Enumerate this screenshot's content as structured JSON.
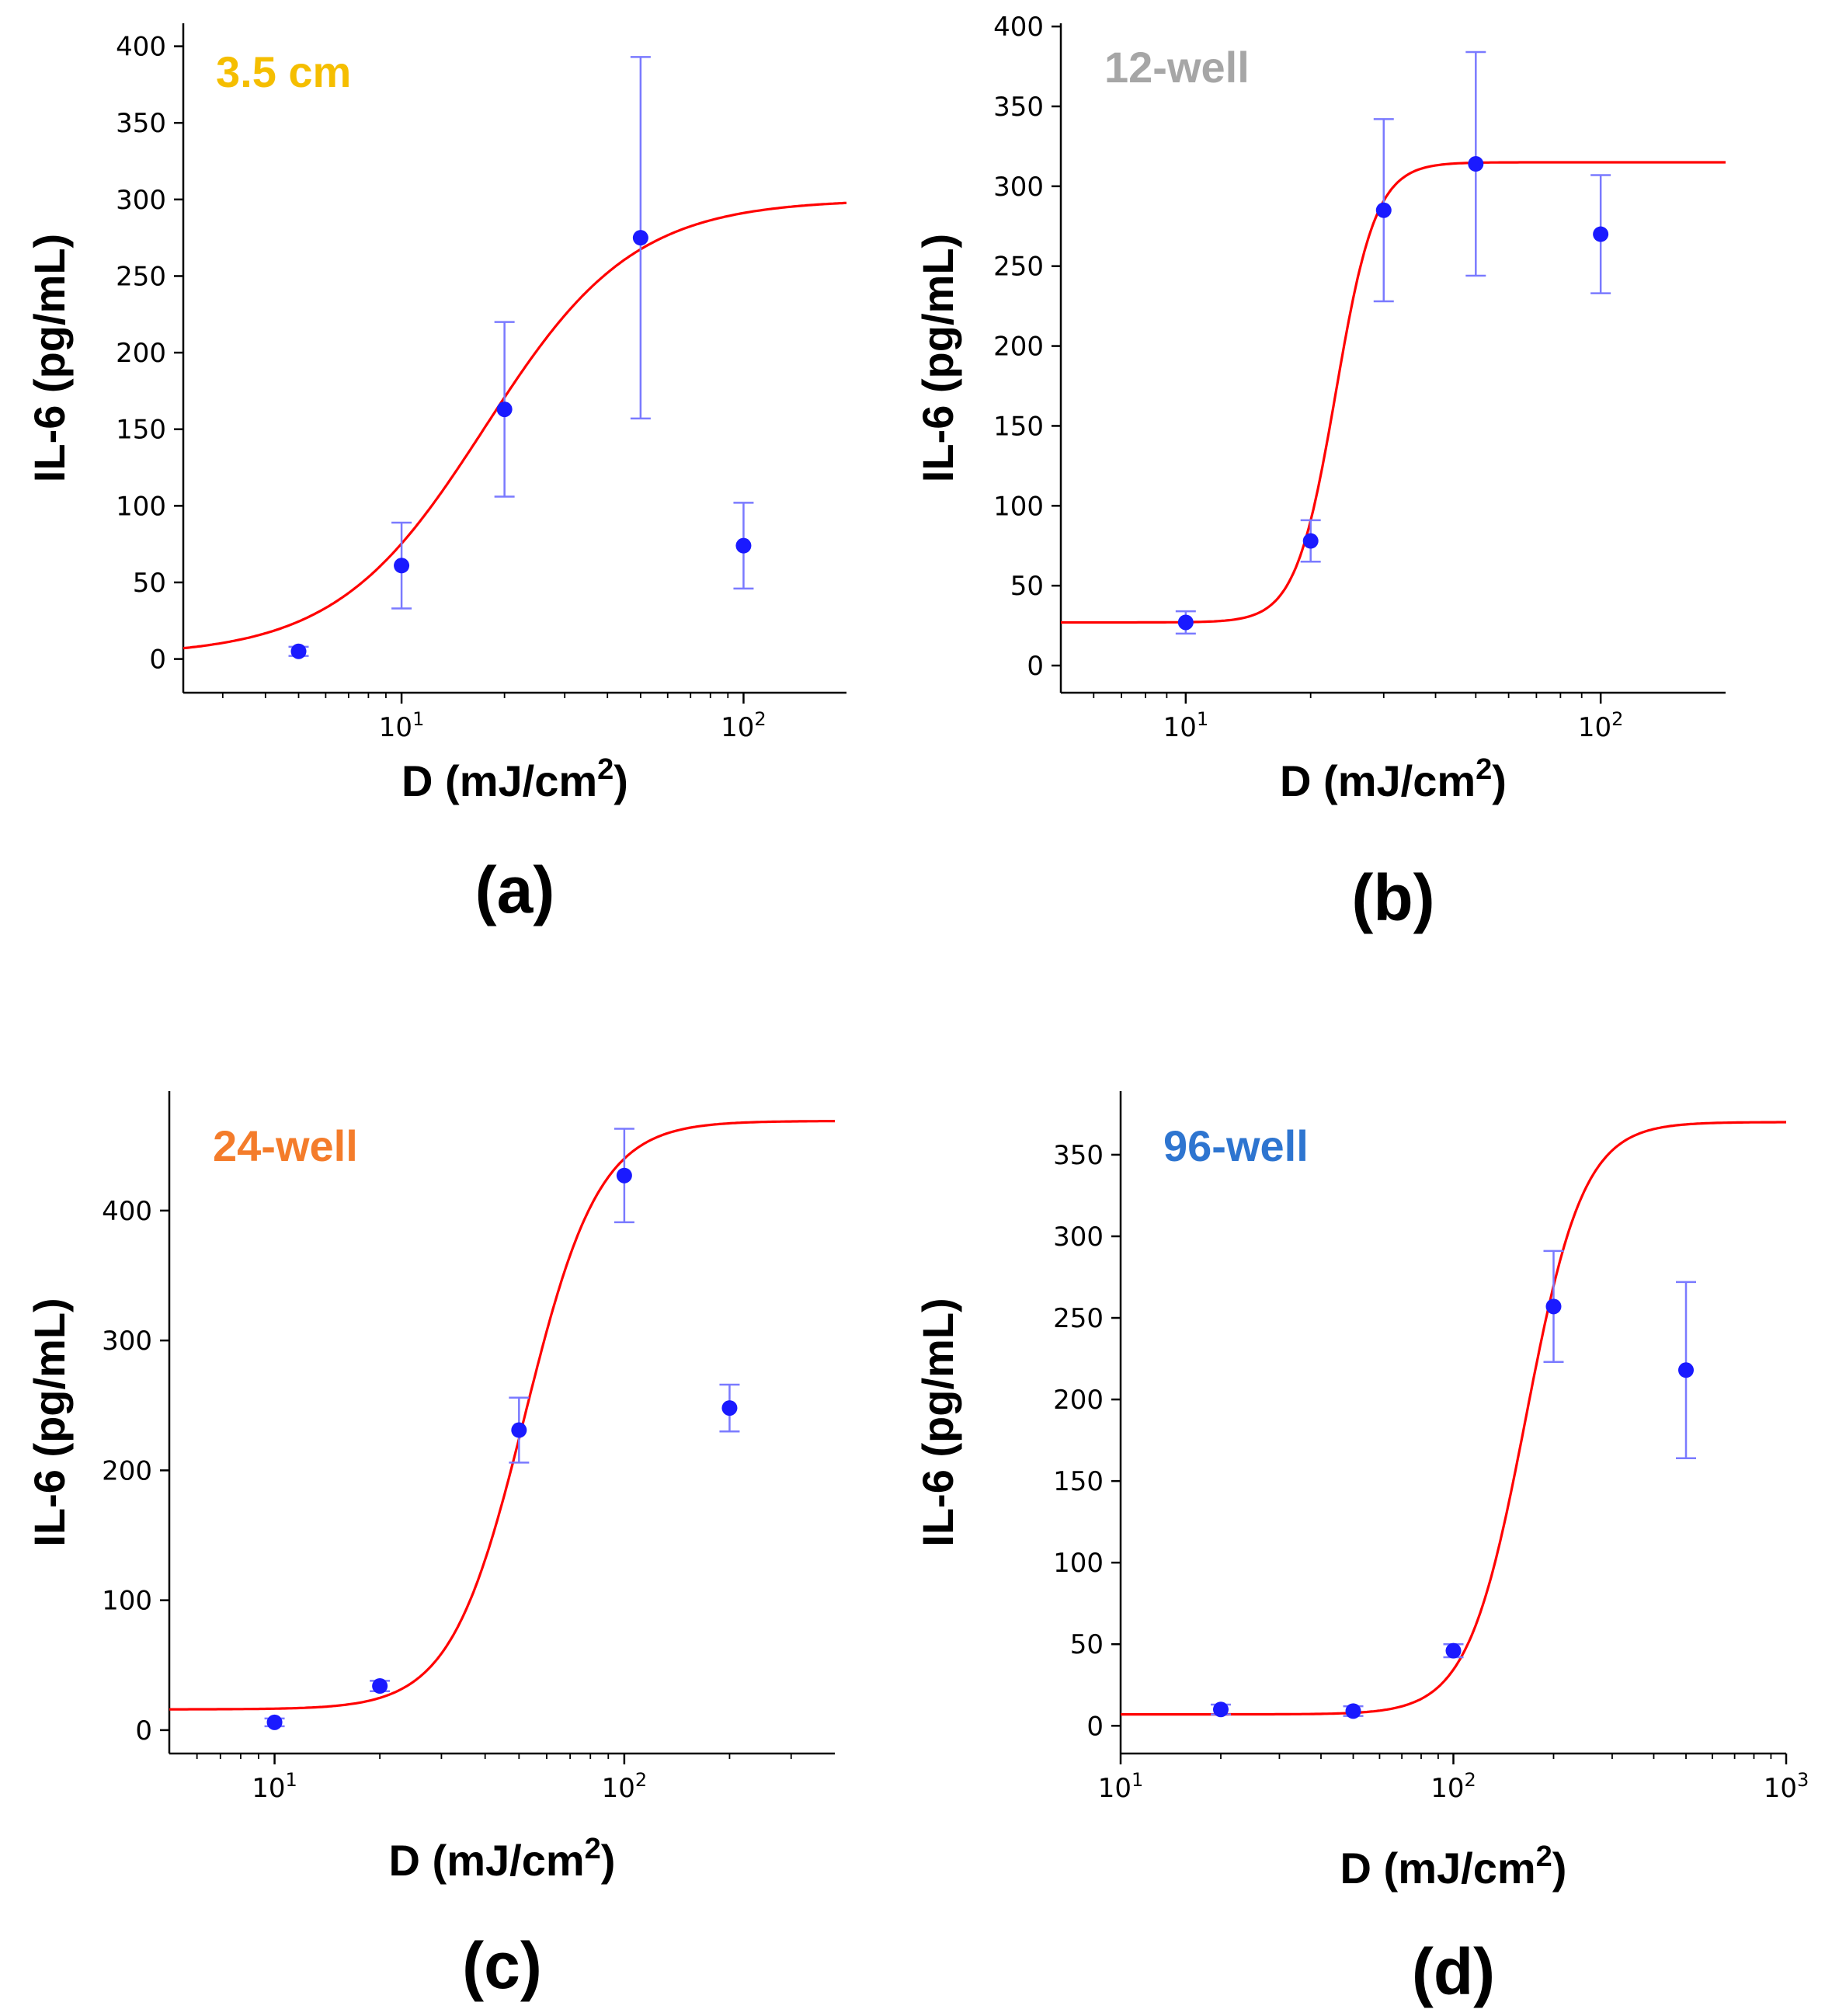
{
  "chart_data": [
    {
      "id": "a",
      "type": "scatter",
      "tag": "(a)",
      "title": "3.5 cm",
      "title_color": "#F5BE00",
      "xlabel": "D (mJ/cm",
      "xlabel_sup": "2",
      "xlabel_end": ")",
      "ylabel": "IL-6 (pg/mL)",
      "xscale": "log",
      "xlim": [
        2.3,
        200
      ],
      "ylim": [
        -22,
        415
      ],
      "yticks": [
        0,
        50,
        100,
        150,
        200,
        250,
        300,
        350,
        400
      ],
      "xticks": [
        {
          "value": 10,
          "base": "10",
          "exp": "1"
        },
        {
          "value": 100,
          "base": "10",
          "exp": "2"
        }
      ],
      "points": [
        {
          "x": 5,
          "y": 5,
          "err": 3
        },
        {
          "x": 10,
          "y": 61,
          "err": 28
        },
        {
          "x": 20,
          "y": 163,
          "err": 57
        },
        {
          "x": 50,
          "y": 275,
          "err": 118
        },
        {
          "x": 100,
          "y": 74,
          "err": 28
        }
      ],
      "fit": {
        "bottom": 2,
        "top": 300,
        "ec50": 17.5,
        "hill": 2.0
      },
      "marker_color": "#1a1aff",
      "errorbar_color": "#7a7aff",
      "fit_color": "#ff0000"
    },
    {
      "id": "b",
      "type": "scatter",
      "tag": "(b)",
      "title": "12-well",
      "title_color": "#A6A6A6",
      "xlabel": "D (mJ/cm",
      "xlabel_sup": "2",
      "xlabel_end": ")",
      "ylabel": "IL-6 (pg/mL)",
      "xscale": "log",
      "xlim": [
        5,
        200
      ],
      "ylim": [
        -17,
        402
      ],
      "yticks": [
        0,
        50,
        100,
        150,
        200,
        250,
        300,
        350,
        400
      ],
      "xticks": [
        {
          "value": 10,
          "base": "10",
          "exp": "1"
        },
        {
          "value": 100,
          "base": "10",
          "exp": "2"
        }
      ],
      "points": [
        {
          "x": 10,
          "y": 27,
          "err": 7
        },
        {
          "x": 20,
          "y": 78,
          "err": 13
        },
        {
          "x": 30,
          "y": 285,
          "err": 57
        },
        {
          "x": 50,
          "y": 314,
          "err": 70
        },
        {
          "x": 100,
          "y": 270,
          "err": 37
        }
      ],
      "fit": {
        "bottom": 27,
        "top": 315,
        "ec50": 23,
        "hill": 9
      },
      "marker_color": "#1a1aff",
      "errorbar_color": "#7a7aff",
      "fit_color": "#ff0000"
    },
    {
      "id": "c",
      "type": "scatter",
      "tag": "(c)",
      "title": "24-well",
      "title_color": "#F47C2B",
      "xlabel": "D (mJ/cm",
      "xlabel_sup": "2",
      "xlabel_end": ")",
      "ylabel": "IL-6 (pg/mL)",
      "xscale": "log",
      "xlim": [
        5,
        400
      ],
      "ylim": [
        -18,
        492
      ],
      "yticks": [
        0,
        100,
        200,
        300,
        400
      ],
      "xticks": [
        {
          "value": 10,
          "base": "10",
          "exp": "1"
        },
        {
          "value": 100,
          "base": "10",
          "exp": "2"
        }
      ],
      "points": [
        {
          "x": 10,
          "y": 6,
          "err": 3
        },
        {
          "x": 20,
          "y": 34,
          "err": 4
        },
        {
          "x": 50,
          "y": 231,
          "err": 25
        },
        {
          "x": 100,
          "y": 427,
          "err": 36
        },
        {
          "x": 200,
          "y": 248,
          "err": 18
        }
      ],
      "fit": {
        "bottom": 16,
        "top": 469,
        "ec50": 52,
        "hill": 4.1
      },
      "marker_color": "#1a1aff",
      "errorbar_color": "#7a7aff",
      "fit_color": "#ff0000"
    },
    {
      "id": "d",
      "type": "scatter",
      "tag": "(d)",
      "title": "96-well",
      "title_color": "#2E75D0",
      "xlabel": "D (mJ/cm",
      "xlabel_sup": "2",
      "xlabel_end": ")",
      "ylabel": "IL-6 (pg/mL)",
      "xscale": "log",
      "xlim": [
        10,
        1000
      ],
      "ylim": [
        -17,
        389
      ],
      "yticks": [
        0,
        50,
        100,
        150,
        200,
        250,
        300,
        350
      ],
      "xticks": [
        {
          "value": 10,
          "base": "10",
          "exp": "1"
        },
        {
          "value": 100,
          "base": "10",
          "exp": "2"
        },
        {
          "value": 1000,
          "base": "10",
          "exp": "3"
        }
      ],
      "points": [
        {
          "x": 20,
          "y": 10,
          "err": 3
        },
        {
          "x": 50,
          "y": 9,
          "err": 3
        },
        {
          "x": 100,
          "y": 46,
          "err": 4
        },
        {
          "x": 200,
          "y": 257,
          "err": 34
        },
        {
          "x": 500,
          "y": 218,
          "err": 54
        }
      ],
      "fit": {
        "bottom": 7,
        "top": 370,
        "ec50": 165,
        "hill": 5
      },
      "marker_color": "#1a1aff",
      "errorbar_color": "#7a7aff",
      "fit_color": "#ff0000"
    }
  ]
}
